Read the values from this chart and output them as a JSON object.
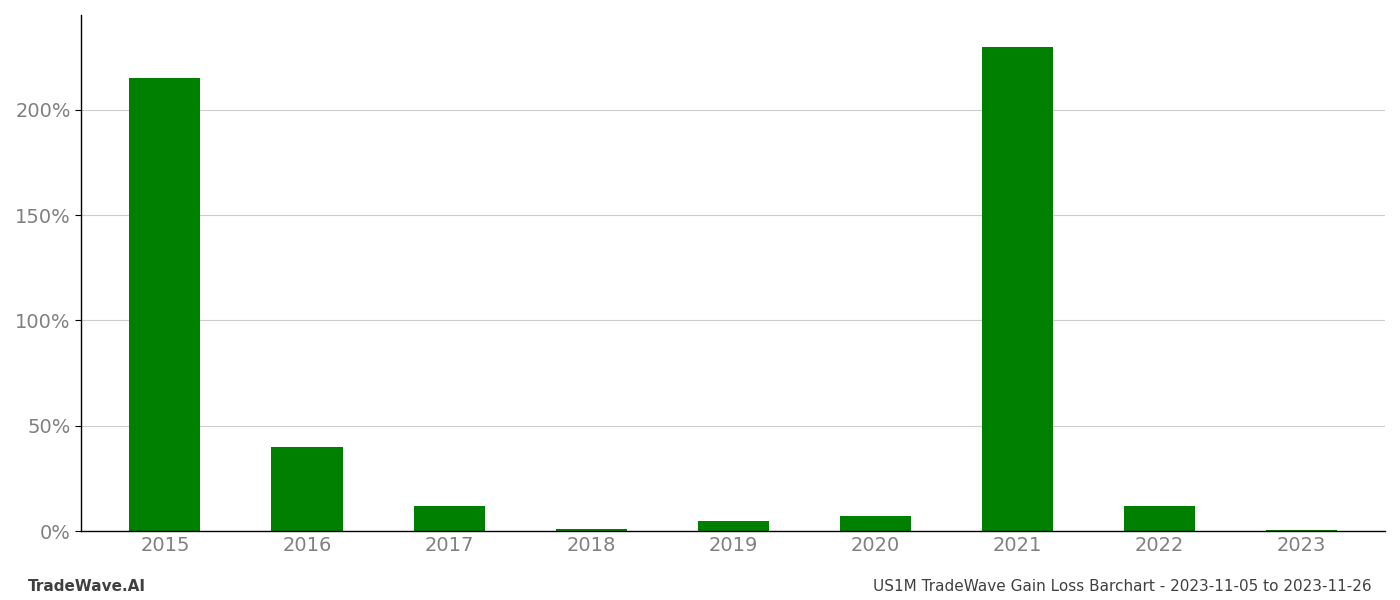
{
  "years": [
    "2015",
    "2016",
    "2017",
    "2018",
    "2019",
    "2020",
    "2021",
    "2022",
    "2023"
  ],
  "values": [
    2.15,
    0.4,
    0.12,
    0.01,
    0.05,
    0.07,
    2.3,
    0.12,
    0.005
  ],
  "bar_color": "#008000",
  "background_color": "#ffffff",
  "grid_color": "#cccccc",
  "tick_label_color": "#808080",
  "ylim": [
    0,
    2.45
  ],
  "yticks": [
    0.0,
    0.5,
    1.0,
    1.5,
    2.0
  ],
  "footer_left": "TradeWave.AI",
  "footer_right": "US1M TradeWave Gain Loss Barchart - 2023-11-05 to 2023-11-26",
  "footer_color": "#404040",
  "footer_fontsize": 11,
  "tick_fontsize": 14,
  "bar_width": 0.5
}
